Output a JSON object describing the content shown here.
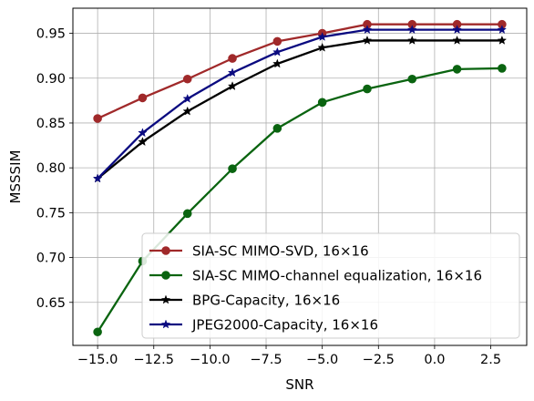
{
  "chart_data": {
    "type": "line",
    "xlabel": "SNR",
    "ylabel": "MSSSIM",
    "xlim": [
      -16.1,
      4.1
    ],
    "ylim": [
      0.602,
      0.978
    ],
    "xticks": [
      -15.0,
      -12.5,
      -10.0,
      -7.5,
      -5.0,
      -2.5,
      0.0,
      2.5
    ],
    "xtick_labels": [
      "−15.0",
      "−12.5",
      "−10.0",
      "−7.5",
      "−5.0",
      "−2.5",
      "0.0",
      "2.5"
    ],
    "yticks": [
      0.65,
      0.7,
      0.75,
      0.8,
      0.85,
      0.9,
      0.95
    ],
    "ytick_labels": [
      "0.65",
      "0.70",
      "0.75",
      "0.80",
      "0.85",
      "0.90",
      "0.95"
    ],
    "grid": true,
    "legend_position": "lower-right",
    "x": [
      -15,
      -13,
      -11,
      -9,
      -7,
      -5,
      -3,
      -1,
      1,
      3
    ],
    "series": [
      {
        "name": "SIA-SC MIMO-SVD, 16×16",
        "color": "#a0292a",
        "marker": "circle",
        "values": [
          0.855,
          0.878,
          0.899,
          0.922,
          0.941,
          0.95,
          0.96,
          0.96,
          0.96,
          0.96
        ]
      },
      {
        "name": "SIA-SC MIMO-channel equalization, 16×16",
        "color": "#0a6410",
        "marker": "circle",
        "values": [
          0.617,
          0.696,
          0.749,
          0.799,
          0.844,
          0.873,
          0.888,
          0.899,
          0.91,
          0.911
        ]
      },
      {
        "name": "BPG-Capacity, 16×16",
        "color": "#000000",
        "marker": "star",
        "values": [
          0.788,
          0.829,
          0.863,
          0.891,
          0.916,
          0.934,
          0.942,
          0.942,
          0.942,
          0.942
        ]
      },
      {
        "name": "JPEG2000-Capacity, 16×16",
        "color": "#0a0a80",
        "marker": "star",
        "values": [
          0.788,
          0.839,
          0.877,
          0.906,
          0.929,
          0.946,
          0.954,
          0.954,
          0.954,
          0.954
        ]
      }
    ]
  }
}
